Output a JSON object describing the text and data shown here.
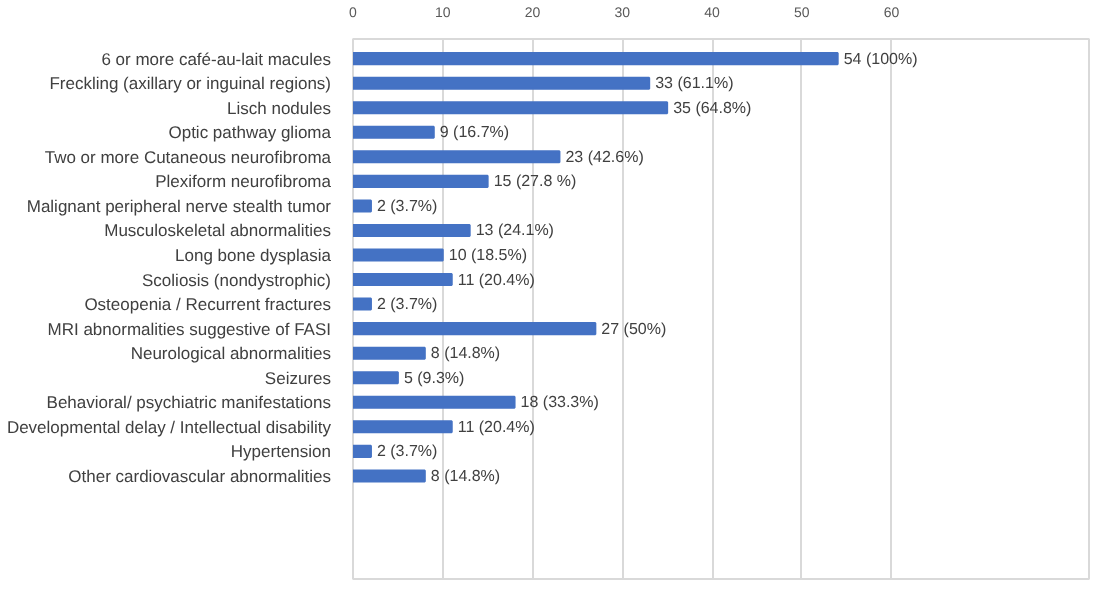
{
  "chart_data": {
    "type": "bar",
    "orientation": "horizontal",
    "categories": [
      "6 or more café-au-lait macules",
      "Freckling (axillary or inguinal regions)",
      "Lisch nodules",
      "Optic pathway glioma",
      "Two or more Cutaneous neurofibroma",
      "Plexiform neurofibroma",
      "Malignant peripheral nerve stealth tumor",
      "Musculoskeletal abnormalities",
      "Long bone dysplasia",
      "Scoliosis (nondystrophic)",
      "Osteopenia / Recurrent fractures",
      "MRI abnormalities suggestive of FASI",
      "Neurological abnormalities",
      "Seizures",
      "Behavioral/ psychiatric manifestations",
      "Developmental delay / Intellectual disability",
      "Hypertension",
      "Other cardiovascular abnormalities"
    ],
    "values": [
      54,
      33,
      35,
      9,
      23,
      15,
      2,
      13,
      10,
      11,
      2,
      27,
      8,
      5,
      18,
      11,
      2,
      8
    ],
    "value_labels": [
      "54 (100%)",
      "33 (61.1%)",
      "35 (64.8%)",
      "9 (16.7%)",
      "23 (42.6%)",
      "15 (27.8 %)",
      "2 (3.7%)",
      "13 (24.1%)",
      "10 (18.5%)",
      "11 (20.4%)",
      "2 (3.7%)",
      "27 (50%)",
      "8 (14.8%)",
      "5 (9.3%)",
      "18 (33.3%)",
      "11 (20.4%)",
      "2 (3.7%)",
      "8 (14.8%)"
    ],
    "color": "#4472c4",
    "xlim": [
      0,
      82
    ],
    "xticks": [
      0,
      10,
      20,
      30,
      40,
      50,
      60
    ],
    "grid": "x"
  }
}
